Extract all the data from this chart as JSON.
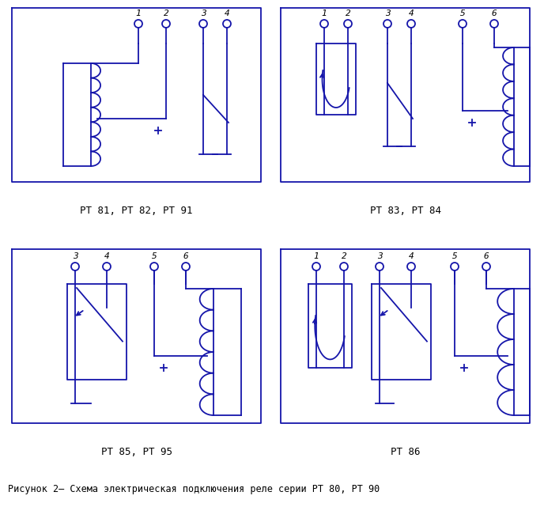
{
  "bg_color": "#ffffff",
  "line_color": "#1515aa",
  "text_color": "#000000",
  "fig_width": 6.88,
  "fig_height": 6.41,
  "caption": "Рисунок 2– Схема электрическая подключения реле серии РТ 80, РТ 90",
  "labels": {
    "tl": "РТ 81, РТ 82, РТ 91",
    "tr": "РТ 83, РТ 84",
    "bl": "РТ 85, РТ 95",
    "br": "РТ 86"
  }
}
